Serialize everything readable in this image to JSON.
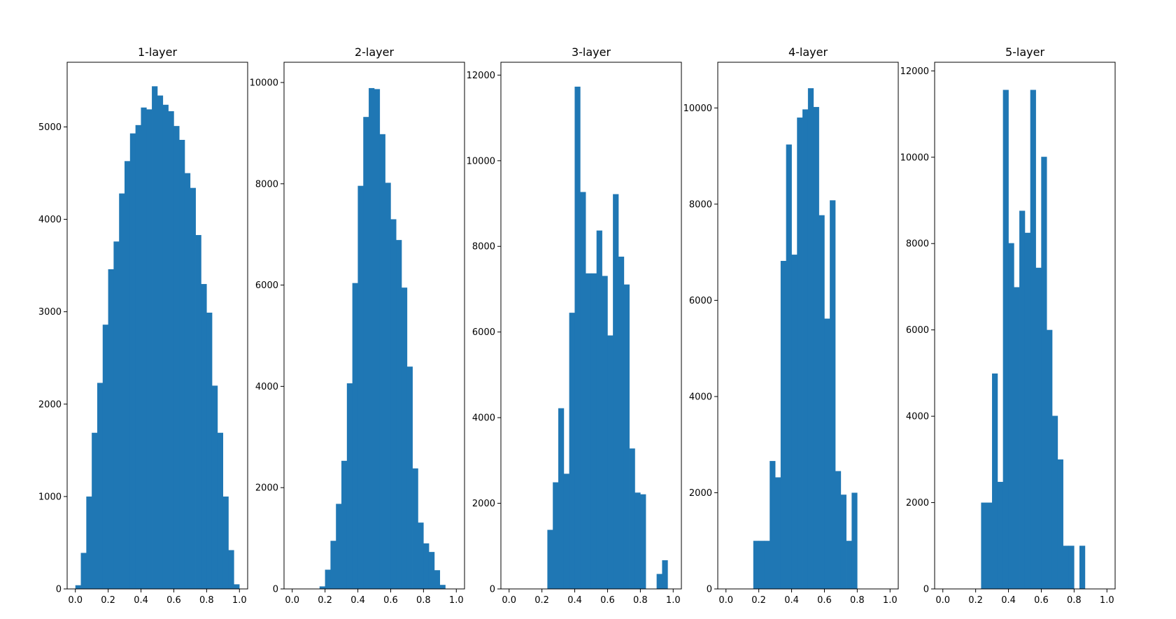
{
  "figure": {
    "bar_color": "#1f77b4",
    "edge_color": "#000000"
  },
  "chart_data": [
    {
      "type": "bar",
      "title": "1-layer",
      "xlabel": "",
      "ylabel": "",
      "xlim": [
        -0.05,
        1.05
      ],
      "ylim": [
        0,
        5700
      ],
      "xticks": [
        "0.0",
        "0.2",
        "0.4",
        "0.6",
        "0.8",
        "1.0"
      ],
      "yticks": [
        "0",
        "1000",
        "2000",
        "3000",
        "4000",
        "5000"
      ],
      "bins": {
        "start": 0.0,
        "width": 0.0333,
        "count": 30
      },
      "values": [
        40,
        390,
        1000,
        1690,
        2230,
        2860,
        3460,
        3760,
        4280,
        4630,
        4930,
        5020,
        5210,
        5190,
        5440,
        5340,
        5240,
        5170,
        5010,
        4860,
        4500,
        4340,
        3830,
        3300,
        2990,
        2200,
        1690,
        1000,
        420,
        50
      ]
    },
    {
      "type": "bar",
      "title": "2-layer",
      "xlabel": "",
      "ylabel": "",
      "xlim": [
        -0.05,
        1.05
      ],
      "ylim": [
        0,
        10400
      ],
      "xticks": [
        "0.0",
        "0.2",
        "0.4",
        "0.6",
        "0.8",
        "1.0"
      ],
      "yticks": [
        "0",
        "2000",
        "4000",
        "6000",
        "8000",
        "10000"
      ],
      "bins": {
        "start": 0.0,
        "width": 0.0333,
        "count": 30
      },
      "values": [
        0,
        0,
        0,
        0,
        0,
        50,
        380,
        950,
        1680,
        2530,
        4060,
        6040,
        7960,
        9320,
        9890,
        9870,
        8980,
        8020,
        7300,
        6890,
        5950,
        4390,
        2380,
        1310,
        900,
        730,
        370,
        80,
        0,
        0
      ]
    },
    {
      "type": "bar",
      "title": "3-layer",
      "xlabel": "",
      "ylabel": "",
      "xlim": [
        -0.05,
        1.05
      ],
      "ylim": [
        0,
        12300
      ],
      "xticks": [
        "0.0",
        "0.2",
        "0.4",
        "0.6",
        "0.8",
        "1.0"
      ],
      "yticks": [
        "0",
        "2000",
        "4000",
        "6000",
        "8000",
        "10000",
        "12000"
      ],
      "bins": {
        "start": 0.0,
        "width": 0.0333,
        "count": 30
      },
      "values": [
        0,
        0,
        0,
        0,
        0,
        0,
        0,
        1380,
        2490,
        4220,
        2690,
        6450,
        11730,
        9270,
        7370,
        7370,
        8370,
        7310,
        5920,
        9220,
        7760,
        7110,
        3280,
        2250,
        2210,
        0,
        0,
        350,
        670,
        0
      ]
    },
    {
      "type": "bar",
      "title": "4-layer",
      "xlabel": "",
      "ylabel": "",
      "xlim": [
        -0.05,
        1.05
      ],
      "ylim": [
        0,
        10950
      ],
      "xticks": [
        "0.0",
        "0.2",
        "0.4",
        "0.6",
        "0.8",
        "1.0"
      ],
      "yticks": [
        "0",
        "2000",
        "4000",
        "6000",
        "8000",
        "10000"
      ],
      "bins": {
        "start": 0.0,
        "width": 0.0333,
        "count": 30
      },
      "values": [
        0,
        0,
        0,
        0,
        0,
        1000,
        1000,
        1000,
        2660,
        2320,
        6820,
        9240,
        6950,
        9800,
        9970,
        10410,
        10020,
        7770,
        5620,
        8080,
        2450,
        1960,
        1000,
        2000,
        0,
        0,
        0,
        0,
        0,
        0
      ]
    },
    {
      "type": "bar",
      "title": "5-layer",
      "xlabel": "",
      "ylabel": "",
      "xlim": [
        -0.05,
        1.05
      ],
      "ylim": [
        0,
        12200
      ],
      "xticks": [
        "0.0",
        "0.2",
        "0.4",
        "0.6",
        "0.8",
        "1.0"
      ],
      "yticks": [
        "0",
        "2000",
        "4000",
        "6000",
        "8000",
        "10000",
        "12000"
      ],
      "bins": {
        "start": 0.0,
        "width": 0.0333,
        "count": 30
      },
      "values": [
        0,
        0,
        0,
        0,
        0,
        0,
        0,
        2000,
        2000,
        4990,
        2480,
        11560,
        8010,
        6990,
        8760,
        8250,
        11560,
        7440,
        10010,
        6000,
        4010,
        3000,
        1000,
        1000,
        0,
        1000,
        0,
        0,
        0,
        0
      ]
    }
  ]
}
